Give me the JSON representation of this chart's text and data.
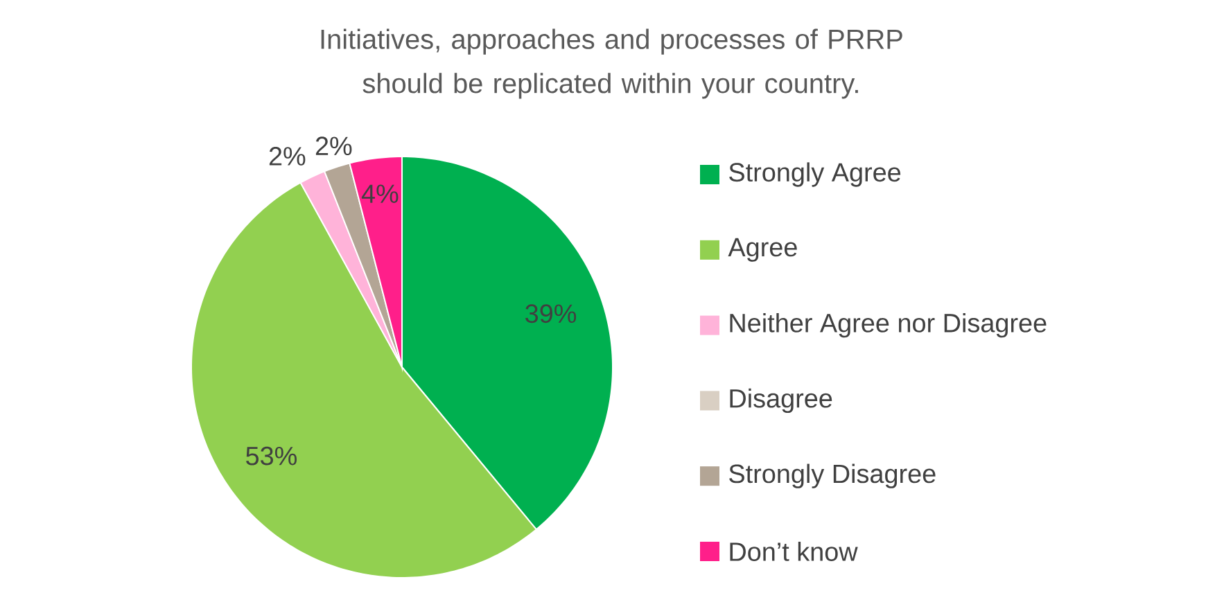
{
  "chart_data": {
    "type": "pie",
    "title": "Initiatives, approaches and processes of PRRP should be replicated within your country.",
    "categories": [
      "Strongly Agree",
      "Agree",
      "Neither Agree nor Disagree",
      "Disagree",
      "Strongly Disagree",
      "Don’t know"
    ],
    "values": [
      39,
      53,
      2,
      0,
      2,
      4
    ],
    "colors": [
      "#00b050",
      "#92d050",
      "#ffb3d9",
      "#d9cfc3",
      "#b3a595",
      "#ff1f8a"
    ],
    "value_labels": [
      "39%",
      "53%",
      "2%",
      null,
      "2%",
      "4%"
    ],
    "legend": "right"
  }
}
